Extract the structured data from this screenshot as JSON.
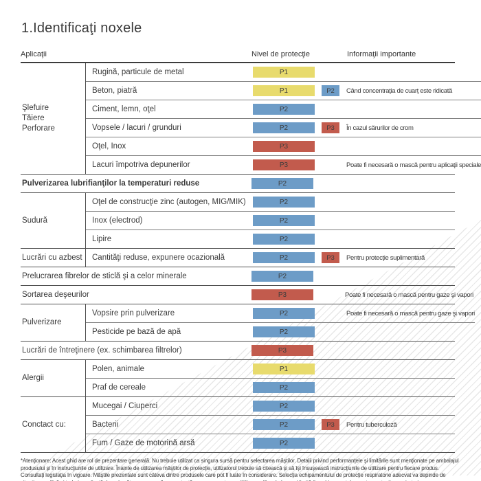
{
  "title": "1.Identificaţi noxele",
  "header": {
    "applications": "Aplicaţii",
    "protection_level": "Nivel de protecţie",
    "important_info": "Informaţii importante"
  },
  "colors": {
    "P1": "#e8db6d",
    "P2": "#6d9cc7",
    "P3": "#c25b4d"
  },
  "table": {
    "groups": [
      {
        "category": "Şlefuire\nTăiere\nPerforare",
        "rows": [
          {
            "label": "Rugină, particule de metal",
            "level": "P1"
          },
          {
            "label": "Beton, piatră",
            "level": "P1",
            "extra": "P2",
            "info": "Când concentraţia de cuarţ este ridicată"
          },
          {
            "label": "Ciment, lemn, oţel",
            "level": "P2"
          },
          {
            "label": "Vopsele / lacuri / grunduri",
            "level": "P2",
            "extra": "P3",
            "info": "În cazul sărurilor de crom"
          },
          {
            "label": "Oţel, Inox",
            "level": "P3"
          },
          {
            "label": "Lacuri împotriva depunerilor",
            "level": "P3",
            "info": "Poate fi necesară o mască pentru aplicaţii speciale"
          }
        ]
      },
      {
        "full": true,
        "bold": true,
        "rows": [
          {
            "label": "Pulverizarea lubrifianţilor la temperaturi reduse",
            "level": "P2"
          }
        ]
      },
      {
        "category": "Sudură",
        "rows": [
          {
            "label": "Oţel de construcţie zinc (autogen, MIG/MIK)",
            "level": "P2"
          },
          {
            "label": "Inox (electrod)",
            "level": "P2"
          },
          {
            "label": "Lipire",
            "level": "P2"
          }
        ]
      },
      {
        "category": "Lucrări cu azbest",
        "rows": [
          {
            "label": "Cantităţi reduse, expunere ocazională",
            "level": "P2",
            "extra": "P3",
            "info": "Pentru protecţie suplimentară"
          }
        ]
      },
      {
        "full": true,
        "rows": [
          {
            "label": "Prelucrarea fibrelor de sticlă şi a celor minerale",
            "level": "P2"
          }
        ]
      },
      {
        "full": true,
        "rows": [
          {
            "label": "Sortarea deşeurilor",
            "level": "P3",
            "info": "Poate fi necesară o mască pentru gaze şi vapori"
          }
        ]
      },
      {
        "category": "Pulverizare",
        "rows": [
          {
            "label": "Vopsire prin pulverizare",
            "level": "P2",
            "info": "Poate fi necesară o mască pentru gaze şi vapori"
          },
          {
            "label": "Pesticide pe bază de apă",
            "level": "P2"
          }
        ]
      },
      {
        "full": true,
        "rows": [
          {
            "label": "Lucrări de întreţinere (ex. schimbarea filtrelor)",
            "level": "P3"
          }
        ]
      },
      {
        "category": "Alergii",
        "rows": [
          {
            "label": "Polen, animale",
            "level": "P1"
          },
          {
            "label": "Praf de cereale",
            "level": "P2"
          }
        ]
      },
      {
        "category": "Conctact cu:",
        "rows": [
          {
            "label": "Mucegai / Ciuperci",
            "level": "P2"
          },
          {
            "label": "Bacterii",
            "level": "P2",
            "extra": "P3",
            "info": "Pentru tuberculoză"
          },
          {
            "label": "Fum / Gaze de motorină arsă",
            "level": "P2"
          }
        ]
      }
    ]
  },
  "footnote": "*Atenţionare: Acest ghid are rol de prezentare generală. Nu trebuie utilizat ca singura sursă pentru selectarea măştilor. Detalii privind performanţele şi limitările sunt menţionate pe ambalajul produsului şi în instrucţiunile de utilizare. Înainte de utilizarea măştilor de protecţie, utilizatorul trebuie să citească şi să îşi însuşească instrucţiunile de utilizare pentru fiecare produs. Consultaţi legislaţia în vigoare. Măştile prezentate sunt câteva dintre produsele care pot fi luate în considerare. Selecţia echipamentului de protecţie respiratorie adecvat va depinde de situaţia specifică şi trebuie realizată doar de către o persoană competentă, care cunoaşte condiţiile specifice de lucru şi limitările echipamentelor pentru protecţie respiratorie"
}
